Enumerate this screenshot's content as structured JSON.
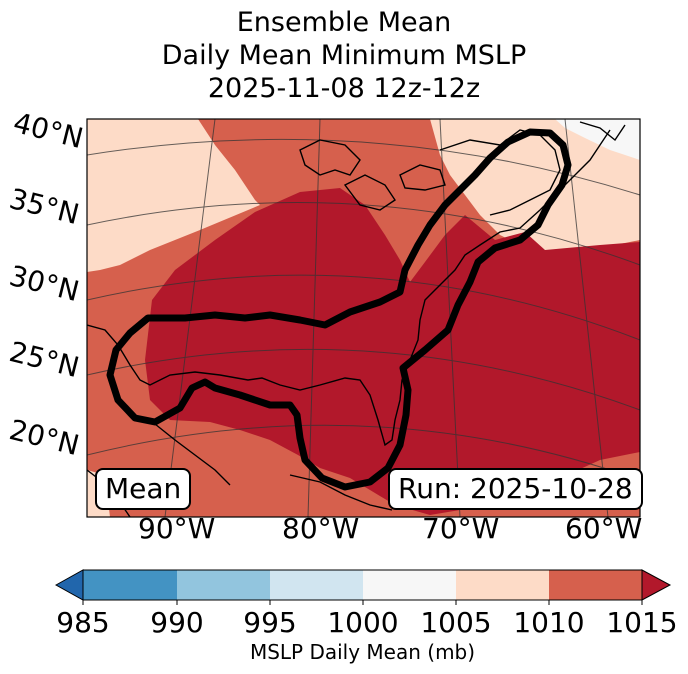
{
  "title": {
    "line1": "Ensemble Mean",
    "line2": "Daily Mean Minimum MSLP",
    "line3": "2025-11-08 12z-12z"
  },
  "map": {
    "lat_labels": [
      "40°N",
      "35°N",
      "30°N",
      "25°N",
      "20°N"
    ],
    "lon_labels": [
      "90°W",
      "80°W",
      "70°W",
      "60°W"
    ],
    "mean_box": "Mean",
    "run_box": "Run: 2025-10-28",
    "region_colors": {
      "1010_1015": "#b2182b",
      "1005_1010": "#d6604d",
      "1000_1005": "#fddbc7",
      "995_1000": "#f7f7f7"
    },
    "contour_color": "#000000"
  },
  "colorbar": {
    "ticks": [
      "985",
      "990",
      "995",
      "1000",
      "1005",
      "1010",
      "1015"
    ],
    "colors": [
      "#2166ac",
      "#4393c3",
      "#92c5de",
      "#d1e5f0",
      "#f7f7f7",
      "#fddbc7",
      "#d6604d",
      "#b2182b"
    ],
    "label": "MSLP Daily Mean (mb)"
  }
}
